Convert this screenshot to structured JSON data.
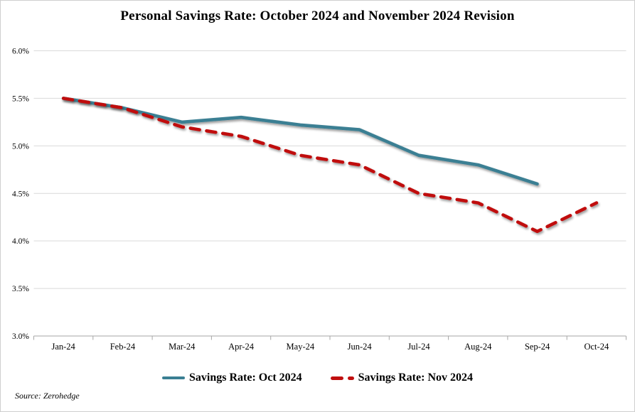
{
  "title": "Personal Savings Rate: October 2024 and November 2024 Revision",
  "source": "Source: Zerohedge",
  "colors": {
    "oct_series": "#3A7F93",
    "nov_series": "#C00F0F",
    "gridline": "#D9D9D9",
    "axis": "#A6A6A6",
    "text": "#000000",
    "background": "#FFFFFF"
  },
  "chart_data": {
    "type": "line",
    "categories": [
      "Jan-24",
      "Feb-24",
      "Mar-24",
      "Apr-24",
      "May-24",
      "Jun-24",
      "Jul-24",
      "Aug-24",
      "Sep-24",
      "Oct-24"
    ],
    "series": [
      {
        "name": "Savings Rate: Oct 2024",
        "style": "solid",
        "color": "#3A7F93",
        "values": [
          5.5,
          5.4,
          5.25,
          5.3,
          5.22,
          5.17,
          4.9,
          4.8,
          4.6,
          null
        ]
      },
      {
        "name": "Savings Rate: Nov 2024",
        "style": "dashed",
        "color": "#C00F0F",
        "values": [
          5.5,
          5.4,
          5.2,
          5.1,
          4.9,
          4.8,
          4.5,
          4.4,
          4.1,
          4.4
        ]
      }
    ],
    "ylabel": "",
    "xlabel": "",
    "ylim": [
      3.0,
      6.0
    ],
    "ytick_step": 0.5,
    "ytick_labels": [
      "3.0%",
      "3.5%",
      "4.0%",
      "4.5%",
      "5.0%",
      "5.5%",
      "6.0%"
    ],
    "grid": true,
    "legend_position": "bottom"
  }
}
